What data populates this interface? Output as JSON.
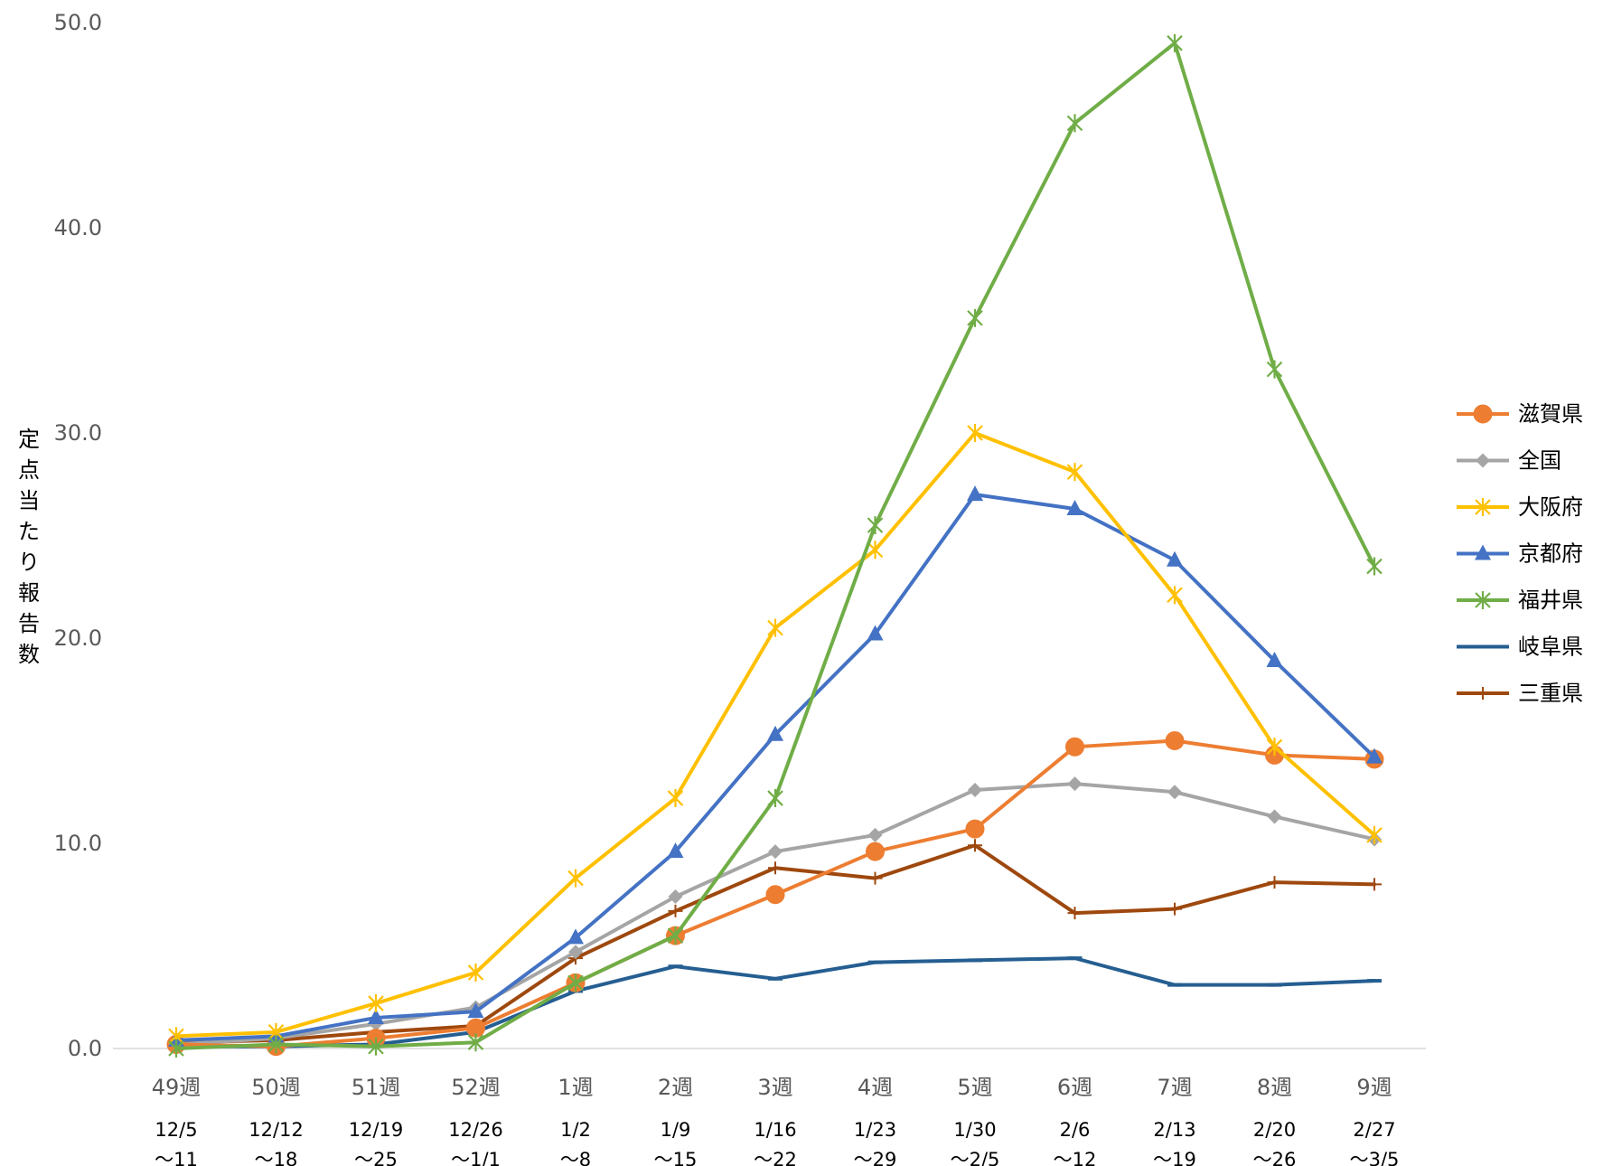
{
  "chart_data": {
    "type": "line",
    "title": "",
    "ylabel": "定点当たり報告数",
    "xlabel": "",
    "ylim": [
      0,
      50
    ],
    "yticks": [
      "0.0",
      "10.0",
      "20.0",
      "30.0",
      "40.0",
      "50.0"
    ],
    "grid": "none",
    "legend_position": "right",
    "categories": [
      "49週",
      "50週",
      "51週",
      "52週",
      "1週",
      "2週",
      "3週",
      "4週",
      "5週",
      "6週",
      "7週",
      "8週",
      "9週"
    ],
    "category_sublabels": [
      [
        "12/5",
        "〜11"
      ],
      [
        "12/12",
        "〜18"
      ],
      [
        "12/19",
        "〜25"
      ],
      [
        "12/26",
        "〜1/1"
      ],
      [
        "1/2",
        "〜8"
      ],
      [
        "1/9",
        "〜15"
      ],
      [
        "1/16",
        "〜22"
      ],
      [
        "1/23",
        "〜29"
      ],
      [
        "1/30",
        "〜2/5"
      ],
      [
        "2/6",
        "〜12"
      ],
      [
        "2/13",
        "〜19"
      ],
      [
        "2/20",
        "〜26"
      ],
      [
        "2/27",
        "〜3/5"
      ]
    ],
    "series": [
      {
        "name": "滋賀県",
        "color": "#ED7D31",
        "marker": "circle",
        "values": [
          0.2,
          0.1,
          0.5,
          1.0,
          3.2,
          5.5,
          7.5,
          9.6,
          10.7,
          14.7,
          15.0,
          14.3,
          14.1
        ]
      },
      {
        "name": "全国",
        "color": "#A5A5A5",
        "marker": "diamond",
        "values": [
          0.2,
          0.5,
          1.2,
          2.0,
          4.7,
          7.4,
          9.6,
          10.4,
          12.6,
          12.9,
          12.5,
          11.3,
          10.2
        ]
      },
      {
        "name": "大阪府",
        "color": "#FFC000",
        "marker": "star",
        "values": [
          0.6,
          0.8,
          2.2,
          3.7,
          8.3,
          12.2,
          20.5,
          24.3,
          30.0,
          28.1,
          22.1,
          14.7,
          10.4
        ]
      },
      {
        "name": "京都府",
        "color": "#4472C4",
        "marker": "triangle",
        "values": [
          0.4,
          0.6,
          1.5,
          1.8,
          5.4,
          9.6,
          15.3,
          20.2,
          27.0,
          26.3,
          23.8,
          18.9,
          14.2
        ]
      },
      {
        "name": "福井県",
        "color": "#70AD47",
        "marker": "asterisk",
        "values": [
          0.0,
          0.2,
          0.1,
          0.3,
          3.2,
          5.5,
          12.2,
          25.5,
          35.6,
          45.1,
          49.0,
          33.1,
          23.5
        ]
      },
      {
        "name": "岐阜県",
        "color": "#255E91",
        "marker": "dash",
        "values": [
          0.1,
          0.1,
          0.2,
          0.8,
          2.8,
          4.0,
          3.4,
          4.2,
          4.3,
          4.4,
          3.1,
          3.1,
          3.3
        ]
      },
      {
        "name": "三重県",
        "color": "#9E480E",
        "marker": "plus",
        "values": [
          0.3,
          0.4,
          0.8,
          1.1,
          4.4,
          6.7,
          8.8,
          8.3,
          9.9,
          6.6,
          6.8,
          8.1,
          8.0
        ]
      }
    ]
  }
}
